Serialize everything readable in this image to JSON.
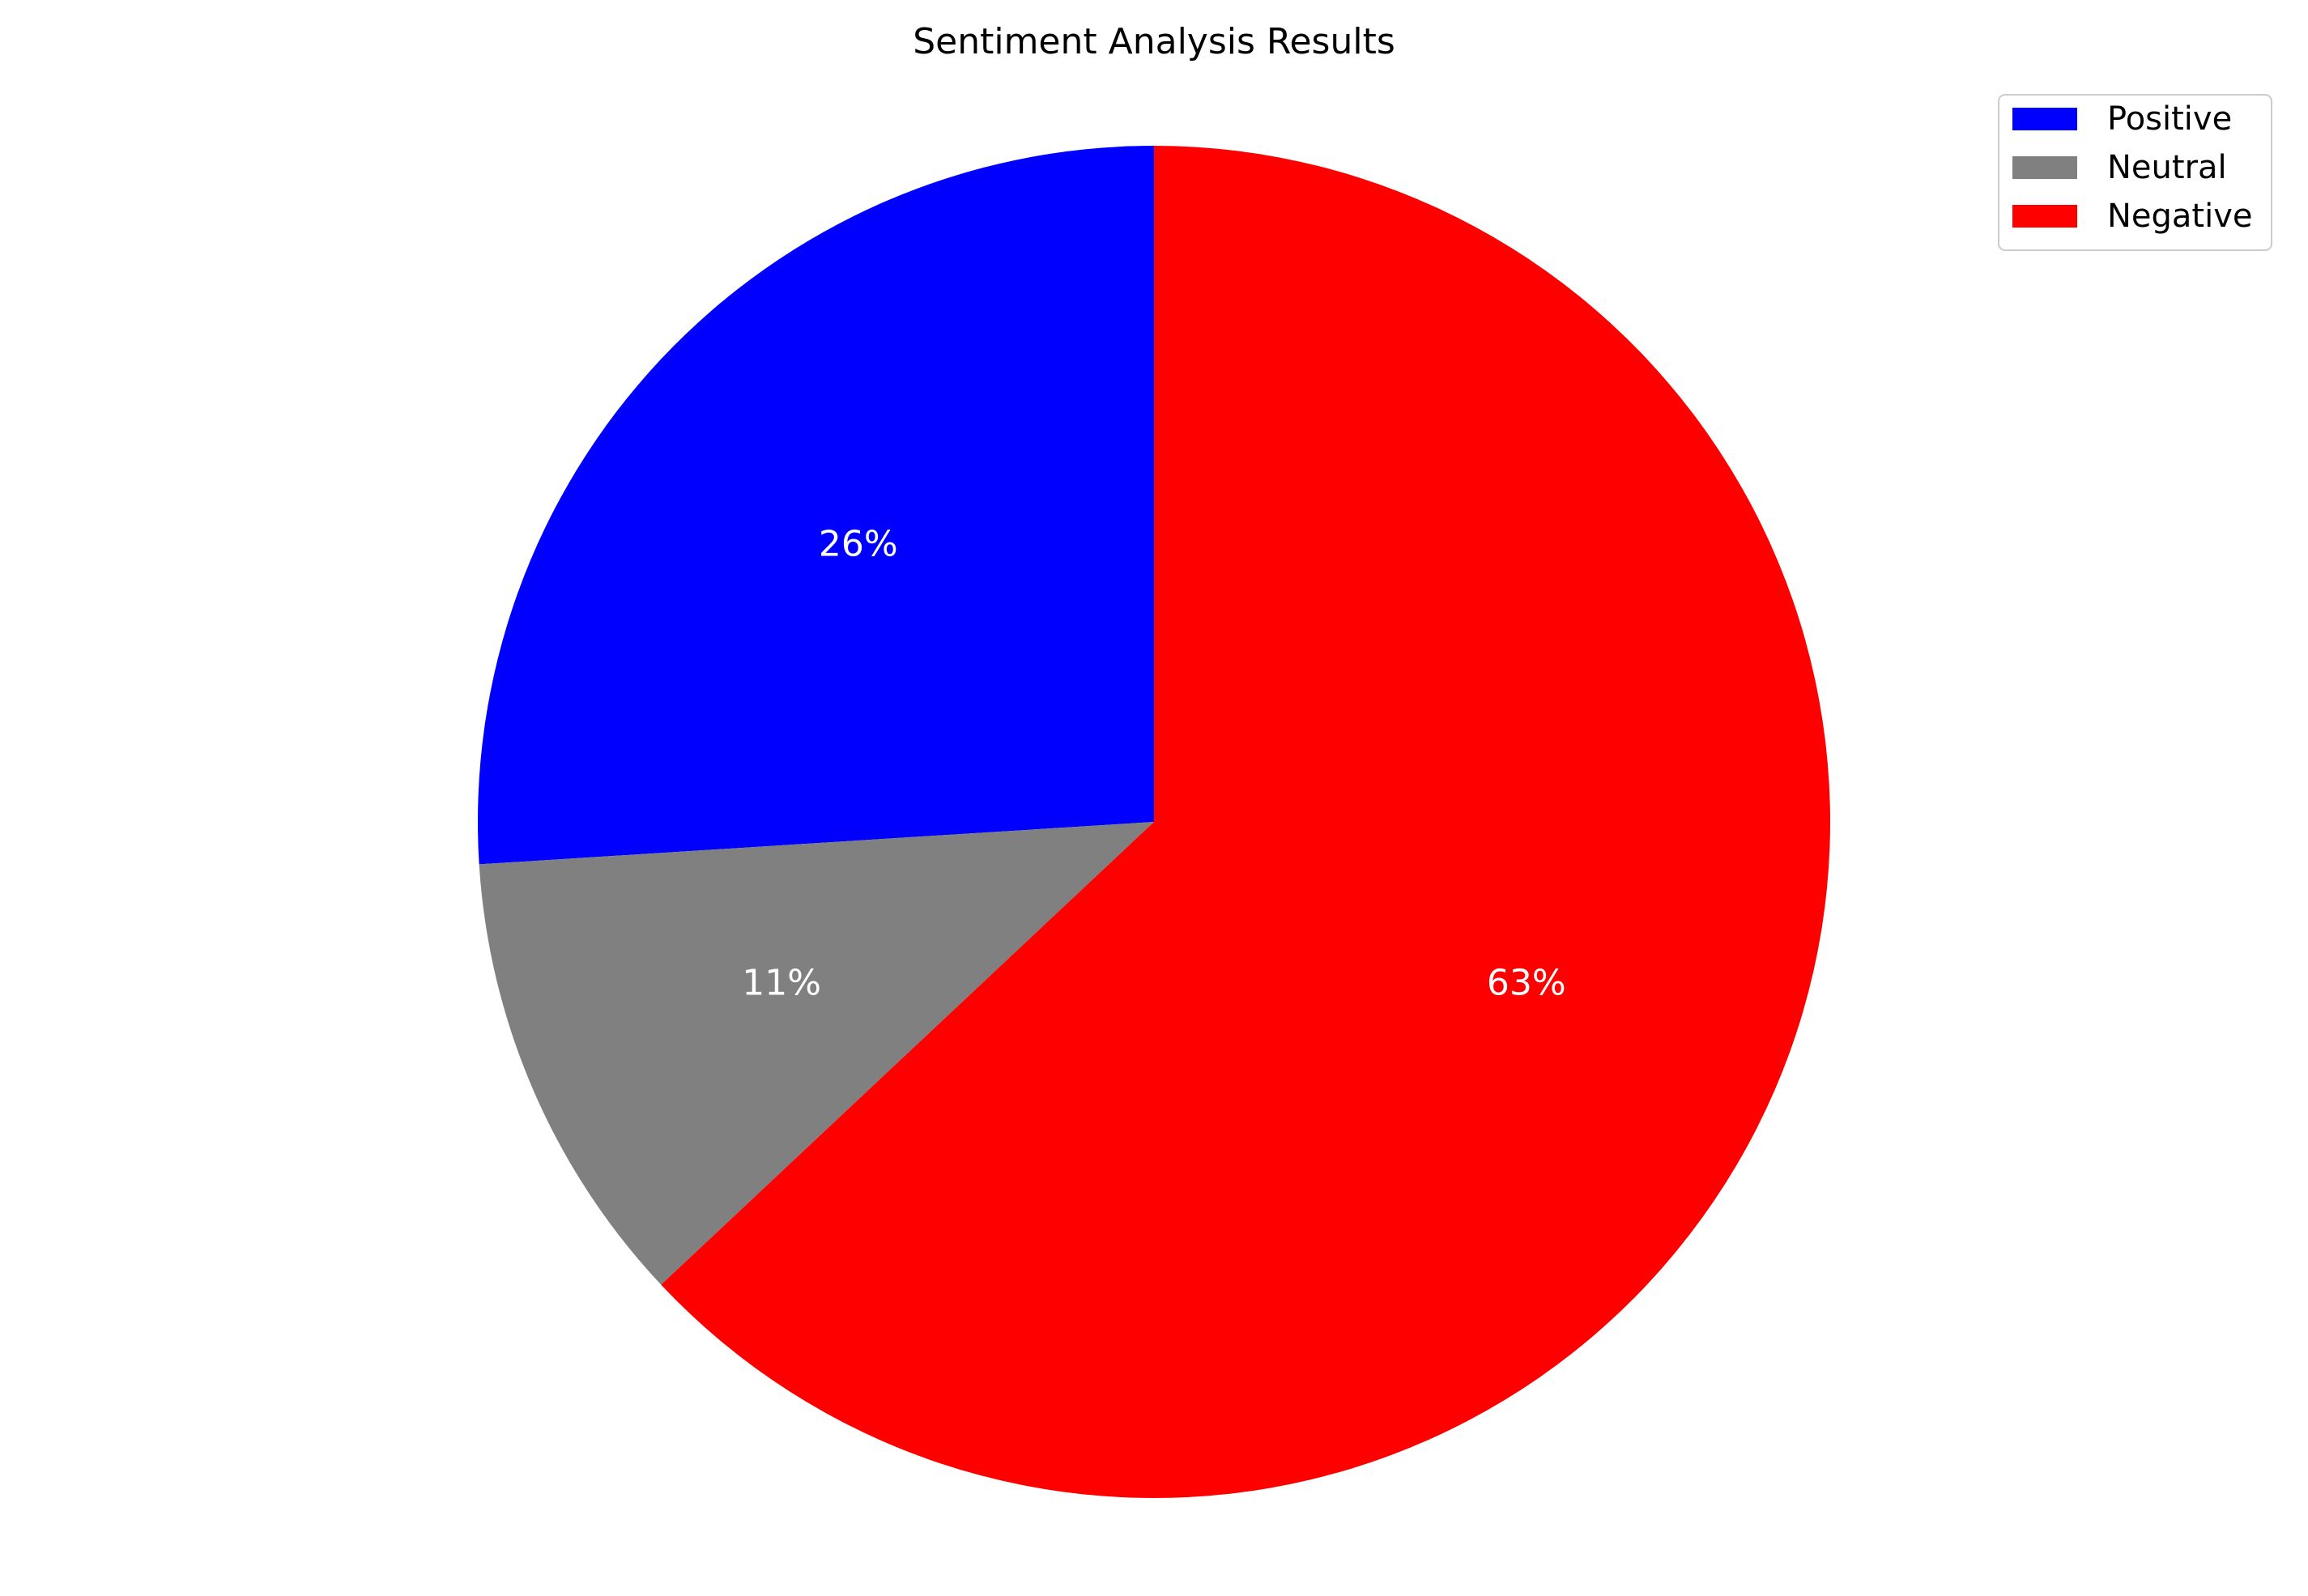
{
  "chart_data": {
    "type": "pie",
    "title": "Sentiment Analysis Results",
    "categories": [
      "Positive",
      "Neutral",
      "Negative"
    ],
    "values": [
      26,
      11,
      63
    ],
    "value_labels": [
      "26%",
      "11%",
      "63%"
    ],
    "colors": [
      "#0000ff",
      "#808080",
      "#ff0000"
    ],
    "start_angle_deg": 90,
    "direction": "counterclockwise",
    "legend": {
      "position": "upper right",
      "entries": [
        "Positive",
        "Neutral",
        "Negative"
      ]
    }
  }
}
